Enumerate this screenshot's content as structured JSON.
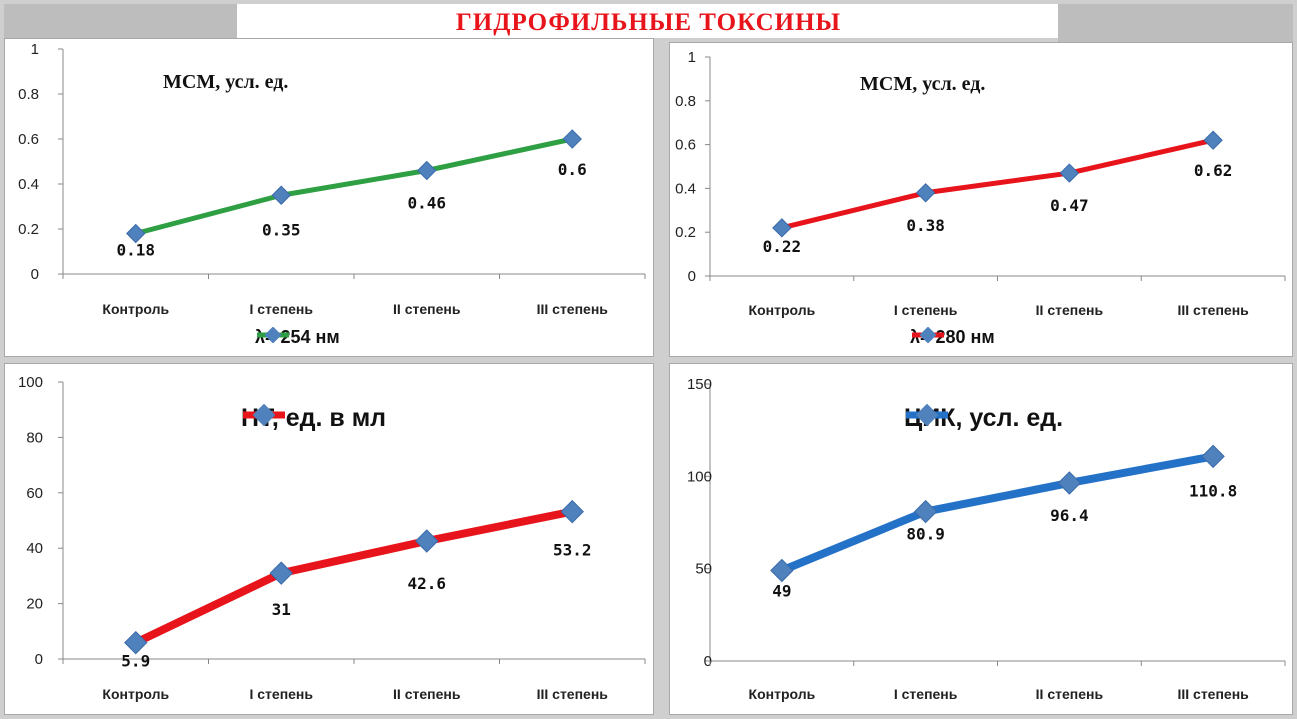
{
  "page": {
    "title": "ГИДРОФИЛЬНЫЕ ТОКСИНЫ"
  },
  "chart_data": [
    {
      "type": "line",
      "title": "МСМ, усл. ед.",
      "categories": [
        "Контроль",
        "I степень",
        "II степень",
        "III степень"
      ],
      "series": [
        {
          "name": "λ= 254 нм",
          "values": [
            0.18,
            0.35,
            0.46,
            0.6
          ],
          "color": "#2ea043",
          "marker_color": "#4f81bd"
        }
      ],
      "data_labels": [
        "0.18",
        "0.35",
        "0.46",
        "0.6"
      ],
      "ylim": [
        0,
        1
      ],
      "yticks": [
        0,
        0.2,
        0.4,
        0.6,
        0.8,
        1
      ],
      "ytick_labels": [
        "0",
        "0.2",
        "0.4",
        "0.6",
        "0.8",
        "1"
      ],
      "legend": "bottom",
      "grid": false
    },
    {
      "type": "line",
      "title": "МСМ, усл. ед.",
      "categories": [
        "Контроль",
        "I степень",
        "II степень",
        "III степень"
      ],
      "series": [
        {
          "name": "λ= 280 нм",
          "values": [
            0.22,
            0.38,
            0.47,
            0.62
          ],
          "color": "#e8141b",
          "marker_color": "#4f81bd"
        }
      ],
      "data_labels": [
        "0.22",
        "0.38",
        "0.47",
        "0.62"
      ],
      "ylim": [
        0,
        1
      ],
      "yticks": [
        0,
        0.2,
        0.4,
        0.6,
        0.8,
        1
      ],
      "ytick_labels": [
        "0",
        "0.2",
        "0.4",
        "0.6",
        "0.8",
        "1"
      ],
      "legend": "bottom",
      "grid": false
    },
    {
      "type": "line",
      "title": "",
      "categories": [
        "Контроль",
        "I степень",
        "II степень",
        "III степень"
      ],
      "series": [
        {
          "name": "НТ, ед. в мл",
          "values": [
            5.9,
            31,
            42.6,
            53.2
          ],
          "color": "#e8141b",
          "marker_color": "#4f81bd"
        }
      ],
      "data_labels": [
        "5.9",
        "31",
        "42.6",
        "53.2"
      ],
      "ylim": [
        0,
        100
      ],
      "yticks": [
        0,
        20,
        40,
        60,
        80,
        100
      ],
      "ytick_labels": [
        "0",
        "20",
        "40",
        "60",
        "80",
        "100"
      ],
      "legend": "top",
      "grid": false
    },
    {
      "type": "line",
      "title": "",
      "categories": [
        "Контроль",
        "I степень",
        "II степень",
        "III степень"
      ],
      "series": [
        {
          "name": "ЦИК, усл. ед.",
          "values": [
            49,
            80.9,
            96.4,
            110.8
          ],
          "color": "#2472c8",
          "marker_color": "#4f81bd"
        }
      ],
      "data_labels": [
        "49",
        "80.9",
        "96.4",
        "110.8"
      ],
      "ylim": [
        0,
        150
      ],
      "yticks": [
        0,
        50,
        100,
        150
      ],
      "ytick_labels": [
        "0",
        "50",
        "100",
        "150"
      ],
      "legend": "top",
      "grid": false
    }
  ]
}
